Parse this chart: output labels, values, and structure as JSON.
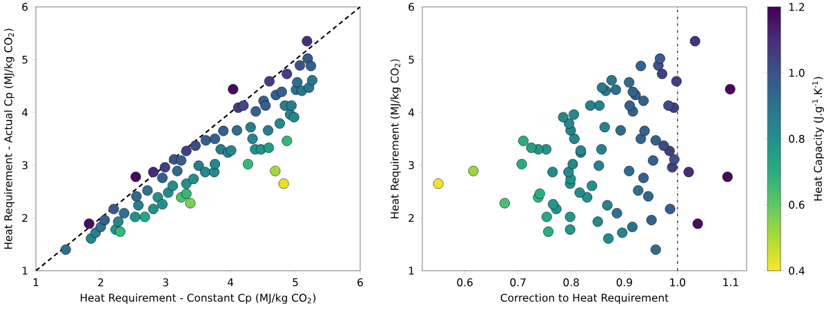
{
  "chart_data": [
    {
      "type": "scatter",
      "xlabel": "Heat Requirement - Constant Cp (MJ/kg CO$_{2}$)",
      "ylabel": "Heat Requirement - Actual Cp (MJ/kg CO$_{2}$)",
      "xlim": [
        1,
        6
      ],
      "ylim": [
        1,
        6
      ],
      "xticks": [
        1,
        2,
        3,
        4,
        5,
        6
      ],
      "yticks": [
        1,
        2,
        3,
        4,
        5,
        6
      ],
      "series": [
        {
          "marker": "circle",
          "x": [
            1.46,
            1.82,
            1.85,
            1.92,
            2.0,
            2.06,
            2.2,
            2.23,
            2.3,
            2.27,
            2.36,
            2.54,
            2.53,
            2.58,
            2.55,
            2.68,
            2.72,
            2.81,
            2.81,
            2.88,
            2.95,
            2.95,
            2.99,
            3.04,
            3.11,
            3.13,
            3.18,
            3.24,
            3.32,
            3.38,
            3.24,
            3.32,
            3.32,
            3.43,
            3.46,
            3.51,
            3.61,
            3.62,
            3.75,
            3.76,
            3.76,
            3.85,
            3.89,
            3.96,
            4.01,
            4.04,
            4.1,
            4.12,
            4.2,
            4.27,
            4.31,
            4.34,
            4.39,
            4.38,
            4.47,
            4.51,
            4.54,
            4.58,
            4.59,
            4.6,
            4.69,
            4.7,
            4.79,
            4.76,
            4.82,
            4.84,
            4.87,
            4.87,
            4.92,
            4.94,
            4.98,
            5.01,
            5.03,
            5.07,
            5.1,
            5.18,
            5.19,
            5.21,
            5.24,
            5.26
          ],
          "values": [
            1.4,
            1.89,
            1.61,
            1.72,
            1.83,
            1.96,
            2.17,
            1.78,
            1.74,
            1.93,
            2.09,
            2.78,
            2.02,
            2.24,
            2.41,
            2.02,
            2.52,
            2.87,
            2.17,
            2.39,
            2.26,
            2.76,
            2.96,
            2.48,
            2.61,
            3.11,
            2.89,
            2.39,
            2.46,
            2.28,
            3.09,
            3.27,
            2.65,
            2.74,
            3.37,
            2.99,
            2.87,
            3.47,
            2.87,
            3.02,
            3.5,
            3.3,
            3.65,
            3.24,
            3.28,
            4.44,
            3.66,
            4.09,
            4.13,
            3.02,
            3.72,
            3.5,
            4.02,
            3.3,
            3.3,
            4.22,
            4.13,
            3.66,
            3.33,
            4.59,
            2.89,
            4.33,
            4.39,
            3.79,
            2.65,
            4.13,
            3.46,
            4.73,
            3.96,
            4.13,
            3.91,
            4.43,
            4.57,
            4.89,
            4.41,
            5.35,
            5.02,
            4.47,
            4.88,
            4.61
          ],
          "colors": [
            "#2f6c8e",
            "#460e61",
            "#23898e",
            "#277f8e",
            "#2c728e",
            "#34608d",
            "#37598c",
            "#20928c",
            "#35b779",
            "#23898e",
            "#2c728e",
            "#46095c",
            "#20928c",
            "#277f8e",
            "#31688e",
            "#22a884",
            "#2c728e",
            "#482878",
            "#21918c",
            "#21918c",
            "#20928c",
            "#34608d",
            "#433e85",
            "#23898e",
            "#21918c",
            "#3b528b",
            "#2f6c8e",
            "#4ac16d",
            "#35b779",
            "#7ad151",
            "#34608d",
            "#433e85",
            "#21918c",
            "#21918c",
            "#3e4a89",
            "#277f8e",
            "#23898e",
            "#34608d",
            "#23898e",
            "#23898e",
            "#34608d",
            "#277f8e",
            "#34608d",
            "#24868e",
            "#24868e",
            "#46095c",
            "#2f6c8e",
            "#433e85",
            "#3e4a89",
            "#35b779",
            "#277f8e",
            "#24868e",
            "#34608d",
            "#20928c",
            "#20928c",
            "#34608d",
            "#34608d",
            "#277f8e",
            "#1f9e89",
            "#433e85",
            "#a0da39",
            "#34608d",
            "#34608d",
            "#24868e",
            "#e7e419",
            "#277f8e",
            "#35b779",
            "#433e85",
            "#24868e",
            "#277f8e",
            "#24868e",
            "#2c728e",
            "#2f6c8e",
            "#3b528b",
            "#2a788e",
            "#472f7d",
            "#37598c",
            "#2a788e",
            "#34608d",
            "#2a788e"
          ]
        },
        {
          "type": "line",
          "x": [
            1,
            6
          ],
          "values": [
            1,
            6
          ],
          "color": "#000000",
          "line_style": "dashed"
        }
      ]
    },
    {
      "type": "scatter",
      "xlabel": "Correction to Heat Requirement",
      "ylabel": "Heat Requirement (MJ/kg CO$_{2}$)",
      "clabel": "Heat Capacity (J.g$^{-1}$.K$^{-1}$)",
      "xlim": [
        0.52,
        1.13
      ],
      "ylim": [
        1,
        6
      ],
      "xticks": [
        0.6,
        0.7,
        0.8,
        0.9,
        {
          "value": 1.0,
          "label": "1.0"
        },
        1.1
      ],
      "yticks": [
        1,
        2,
        3,
        4,
        5,
        6
      ],
      "clim": [
        0.4,
        1.2
      ],
      "cticks": [
        0.4,
        0.6,
        0.8,
        {
          "value": 1.0,
          "label": "1.0"
        },
        1.2
      ],
      "ref_lines": [
        {
          "axis": "x",
          "value": 1.0,
          "color": "#000000",
          "line_style": "dashdot"
        }
      ],
      "series": [
        {
          "marker": "circle",
          "x": [
            0.959,
            1.038,
            0.87,
            0.896,
            0.915,
            0.951,
            0.986,
            0.798,
            0.757,
            0.85,
            0.886,
            1.094,
            0.798,
            0.868,
            0.945,
            0.754,
            0.926,
            1.021,
            0.772,
            0.83,
            0.766,
            0.936,
            0.99,
            0.816,
            0.839,
            0.994,
            0.909,
            0.738,
            0.741,
            0.675,
            0.954,
            0.985,
            0.798,
            0.799,
            0.974,
            0.852,
            0.795,
            0.959,
            0.765,
            0.803,
            0.931,
            0.857,
            0.938,
            0.818,
            0.818,
            1.099,
            0.893,
            0.993,
            0.983,
            0.707,
            0.863,
            0.806,
            0.916,
            0.753,
            0.738,
            0.936,
            0.91,
            0.799,
            0.725,
            0.998,
            0.616,
            0.921,
            0.916,
            0.796,
            0.55,
            0.853,
            0.71,
            0.971,
            0.805,
            0.836,
            0.785,
            0.884,
            0.909,
            0.964,
            0.865,
            1.033,
            0.967,
            0.858,
            0.931,
            0.876
          ],
          "values": [
            1.4,
            1.89,
            1.61,
            1.72,
            1.83,
            1.96,
            2.17,
            1.78,
            1.74,
            1.93,
            2.09,
            2.78,
            2.02,
            2.24,
            2.41,
            2.02,
            2.52,
            2.87,
            2.17,
            2.39,
            2.26,
            2.76,
            2.96,
            2.48,
            2.61,
            3.11,
            2.89,
            2.39,
            2.46,
            2.28,
            3.09,
            3.27,
            2.65,
            2.74,
            3.37,
            2.99,
            2.87,
            3.47,
            2.87,
            3.02,
            3.5,
            3.3,
            3.65,
            3.24,
            3.28,
            4.44,
            3.66,
            4.09,
            4.13,
            3.02,
            3.72,
            3.5,
            4.02,
            3.3,
            3.3,
            4.22,
            4.13,
            3.66,
            3.33,
            4.59,
            2.89,
            4.33,
            4.39,
            3.79,
            2.65,
            4.13,
            3.46,
            4.73,
            3.96,
            4.13,
            3.91,
            4.43,
            4.57,
            4.89,
            4.41,
            5.35,
            5.02,
            4.47,
            4.88,
            4.61
          ],
          "cvalues": [
            0.92,
            1.17,
            0.82,
            0.85,
            0.9,
            0.95,
            0.97,
            0.78,
            0.7,
            0.82,
            0.9,
            1.18,
            0.78,
            0.85,
            0.93,
            0.72,
            0.9,
            1.1,
            0.8,
            0.8,
            0.78,
            0.95,
            1.05,
            0.82,
            0.8,
            1.0,
            0.92,
            0.68,
            0.7,
            0.64,
            0.95,
            1.05,
            0.8,
            0.8,
            1.02,
            0.85,
            0.82,
            0.95,
            0.82,
            0.82,
            0.95,
            0.85,
            0.95,
            0.83,
            0.83,
            1.18,
            0.92,
            1.05,
            1.02,
            0.7,
            0.85,
            0.83,
            0.95,
            0.78,
            0.78,
            0.95,
            0.95,
            0.85,
            0.75,
            1.05,
            0.52,
            0.95,
            0.95,
            0.83,
            0.42,
            0.85,
            0.7,
            1.05,
            0.83,
            0.85,
            0.83,
            0.9,
            0.92,
            1.0,
            0.88,
            1.08,
            0.97,
            0.88,
            0.95,
            0.88
          ]
        }
      ]
    }
  ]
}
